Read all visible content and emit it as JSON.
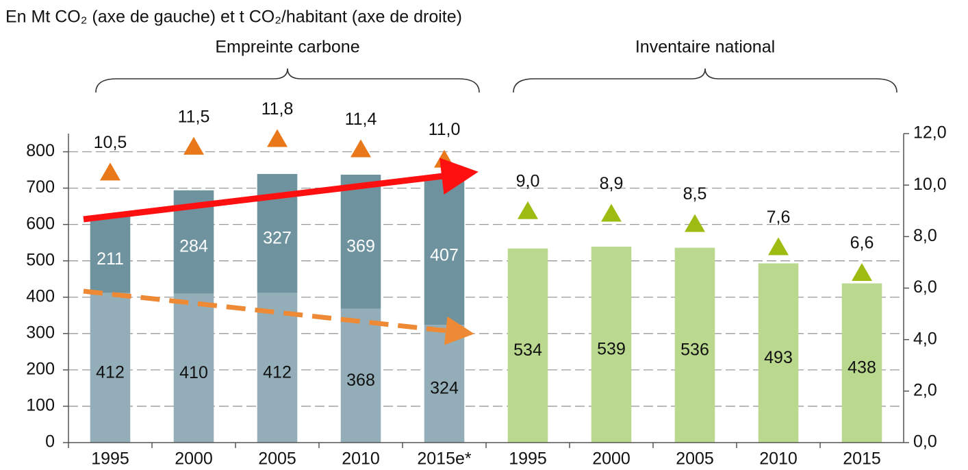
{
  "chart_data": {
    "type": "bar",
    "title": "En Mt CO₂ (axe de gauche) et t CO₂/habitant (axe de droite)",
    "annotations": [
      "Empreinte carbone",
      "Inventaire national"
    ],
    "categories": [
      "1995",
      "2000",
      "2005",
      "2010",
      "2015e*",
      "1995",
      "2000",
      "2005",
      "2010",
      "2015"
    ],
    "stacked": true,
    "grid": true,
    "ylim": [
      0,
      850
    ],
    "yticks": [
      0,
      100,
      200,
      300,
      400,
      500,
      600,
      700,
      800
    ],
    "y2lim": [
      0,
      12
    ],
    "y2ticks": [
      {
        "value": 0,
        "label": "0,0"
      },
      {
        "value": 2,
        "label": "2,0"
      },
      {
        "value": 4,
        "label": "4,0"
      },
      {
        "value": 6,
        "label": "6,0"
      },
      {
        "value": 8,
        "label": "8,0"
      },
      {
        "value": 10,
        "label": "10,0"
      },
      {
        "value": 12,
        "label": "12,0"
      }
    ],
    "series": [
      {
        "color": "#94aeb9",
        "label_color": "#111111",
        "values": [
          412,
          410,
          412,
          368,
          324,
          null,
          null,
          null,
          null,
          null
        ]
      },
      {
        "color": "#6f939e",
        "label_color": "#ffffff",
        "values": [
          211,
          284,
          327,
          369,
          407,
          null,
          null,
          null,
          null,
          null
        ]
      },
      {
        "color": "#bad88e",
        "label_color": "#111111",
        "values": [
          null,
          null,
          null,
          null,
          null,
          534,
          539,
          536,
          493,
          438
        ]
      },
      {
        "type": "triangle",
        "axis": "y2",
        "color": "#e8781a",
        "values": [
          10.5,
          11.5,
          11.8,
          11.4,
          11.0,
          null,
          null,
          null,
          null,
          null
        ],
        "value_labels": [
          "10,5",
          "11,5",
          "11,8",
          "11,4",
          "11,0",
          null,
          null,
          null,
          null,
          null
        ]
      },
      {
        "type": "triangle",
        "axis": "y2",
        "color": "#9cbc12",
        "values": [
          null,
          null,
          null,
          null,
          null,
          9.0,
          8.9,
          8.5,
          7.6,
          6.6
        ],
        "value_labels": [
          null,
          null,
          null,
          null,
          null,
          "9,0",
          "8,9",
          "8,5",
          "7,6",
          "6,6"
        ]
      }
    ]
  }
}
